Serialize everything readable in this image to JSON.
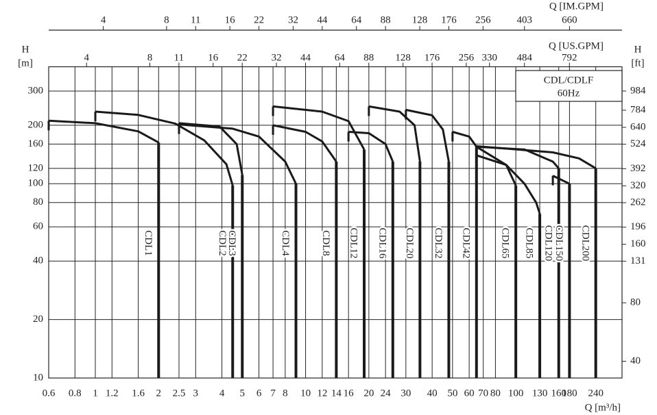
{
  "chart_data": {
    "type": "line",
    "xscale": "log",
    "yscale": "log",
    "grid": true,
    "xlabel": "Q [m³/h]",
    "ylabel": "H",
    "yunit": "[m]",
    "y2label": "H",
    "y2unit": "[ft]",
    "x2label": "Q [US.GPM]",
    "x3label": "Q [IM.GPM]",
    "legend_title": "CDL/CDLF",
    "legend_subtitle": "60Hz",
    "legend_corner": "top-right",
    "xlim": [
      0.6,
      320
    ],
    "xticks": [
      0.6,
      0.8,
      1,
      1.2,
      1.6,
      2,
      2.5,
      3,
      4,
      5,
      6,
      7,
      8,
      10,
      12,
      14,
      16,
      20,
      24,
      30,
      40,
      50,
      60,
      70,
      80,
      100,
      130,
      160,
      180,
      240
    ],
    "ylim": [
      10,
      400
    ],
    "yticks": [
      10,
      20,
      40,
      60,
      80,
      100,
      120,
      160,
      200,
      300
    ],
    "y2lim": [
      32.8,
      1312
    ],
    "y2ticks": [
      40,
      80,
      131,
      160,
      196,
      262,
      320,
      392,
      524,
      640,
      784,
      984
    ],
    "x2lim": [
      2.642,
      1409
    ],
    "x2ticks": [
      4,
      8,
      11,
      16,
      22,
      32,
      44,
      64,
      88,
      128,
      176,
      256,
      330,
      484,
      792
    ],
    "x3lim": [
      2.2,
      1173
    ],
    "x3ticks": [
      4,
      8,
      11,
      16,
      22,
      32,
      44,
      64,
      88,
      128,
      176,
      256,
      403,
      660
    ],
    "series": [
      {
        "name": "CDL1",
        "color": "#1a1a1a",
        "x": [
          0.6,
          1,
          1.6,
          2
        ],
        "values": [
          211,
          205,
          186,
          163
        ]
      },
      {
        "name": "CDL2",
        "color": "#1a1a1a",
        "x": [
          1,
          1.6,
          2.4,
          3.3,
          4.2,
          4.5
        ],
        "values": [
          235,
          226,
          204,
          167,
          126,
          98
        ]
      },
      {
        "name": "CDL3",
        "color": "#1a1a1a",
        "x": [
          2.5,
          3.9,
          4.7,
          5
        ],
        "values": [
          205,
          197,
          160,
          111
        ]
      },
      {
        "name": "CDL4",
        "color": "#1a1a1a",
        "x": [
          2.5,
          4.5,
          6,
          8,
          9
        ],
        "values": [
          202,
          192,
          175,
          130,
          100
        ]
      },
      {
        "name": "CDL8",
        "color": "#1a1a1a",
        "x": [
          7,
          10,
          12,
          14
        ],
        "values": [
          200,
          185,
          165,
          130
        ]
      },
      {
        "name": "CDL12",
        "color": "#1a1a1a",
        "x": [
          7,
          12,
          16,
          19
        ],
        "values": [
          250,
          235,
          210,
          150
        ]
      },
      {
        "name": "CDL16",
        "color": "#1a1a1a",
        "x": [
          16,
          20,
          24,
          26
        ],
        "values": [
          185,
          182,
          160,
          130
        ]
      },
      {
        "name": "CDL20",
        "color": "#1a1a1a",
        "x": [
          20,
          28,
          33,
          35
        ],
        "values": [
          250,
          235,
          200,
          130
        ]
      },
      {
        "name": "CDL32",
        "color": "#1a1a1a",
        "x": [
          30,
          40,
          45,
          48
        ],
        "values": [
          240,
          225,
          190,
          130
        ]
      },
      {
        "name": "CDL42",
        "color": "#1a1a1a",
        "x": [
          50,
          60,
          65
        ],
        "values": [
          185,
          175,
          155
        ]
      },
      {
        "name": "CDL65",
        "color": "#1a1a1a",
        "x": [
          65,
          90,
          100
        ],
        "values": [
          155,
          125,
          98
        ]
      },
      {
        "name": "CDL85",
        "color": "#1a1a1a",
        "x": [
          65,
          90,
          110,
          125,
          130
        ],
        "values": [
          140,
          125,
          100,
          80,
          70
        ]
      },
      {
        "name": "CDL120",
        "color": "#1a1a1a",
        "x": [
          65,
          110,
          150,
          160
        ],
        "values": [
          155,
          150,
          130,
          120
        ]
      },
      {
        "name": "CDL150",
        "color": "#1a1a1a",
        "x": [
          150,
          180
        ],
        "values": [
          110,
          100
        ]
      },
      {
        "name": "CDL200",
        "color": "#1a1a1a",
        "x": [
          65,
          150,
          200,
          240
        ],
        "values": [
          156,
          145,
          135,
          120
        ]
      }
    ]
  }
}
